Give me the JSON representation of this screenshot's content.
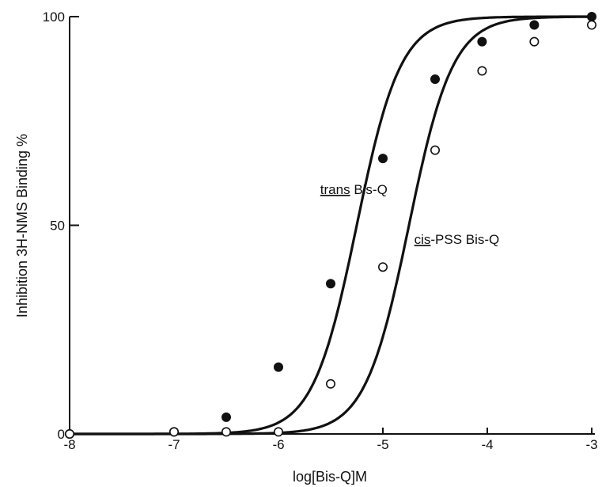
{
  "chart_data": {
    "type": "scatter",
    "xlabel": "log[Bis-Q]M",
    "ylabel": "Inhibition 3H-NMS Binding %",
    "xlim": [
      -8,
      -3
    ],
    "ylim": [
      0,
      100
    ],
    "x_ticks": [
      -8,
      -7,
      -6,
      -5,
      -4,
      -3
    ],
    "x_tick_labels": [
      "-8",
      "-7",
      "-6",
      "-5",
      "-4",
      "-3"
    ],
    "y_ticks": [
      0,
      50,
      100
    ],
    "y_tick_labels": [
      "0",
      "50",
      "100"
    ],
    "grid": false,
    "series": [
      {
        "name": "trans Bis-Q",
        "marker": "filled-circle",
        "x": [
          -8,
          -7,
          -6.5,
          -6,
          -5.5,
          -5,
          -4.5,
          -4.05,
          -3.55,
          -3
        ],
        "y": [
          0,
          0.5,
          4,
          16,
          36,
          66,
          85,
          94,
          98,
          100
        ],
        "curve": {
          "ic50_log": -5.25,
          "hill": 0.9
        }
      },
      {
        "name": "cis-PSS Bis-Q",
        "marker": "open-circle",
        "x": [
          -8,
          -7,
          -6.5,
          -6,
          -5.5,
          -5,
          -4.5,
          -4.05,
          -3.55,
          -3
        ],
        "y": [
          0,
          0.5,
          0.5,
          0.5,
          12,
          40,
          68,
          87,
          94,
          98
        ],
        "curve": {
          "ic50_log": -4.75,
          "hill": 0.9
        }
      }
    ],
    "annotations": [
      {
        "underlined": "trans",
        "rest": " Bis-Q",
        "x": -5.6,
        "y": 57.5
      },
      {
        "underlined": "cis",
        "rest": "-PSS  Bis-Q",
        "x": -4.7,
        "y": 45.5
      }
    ]
  }
}
